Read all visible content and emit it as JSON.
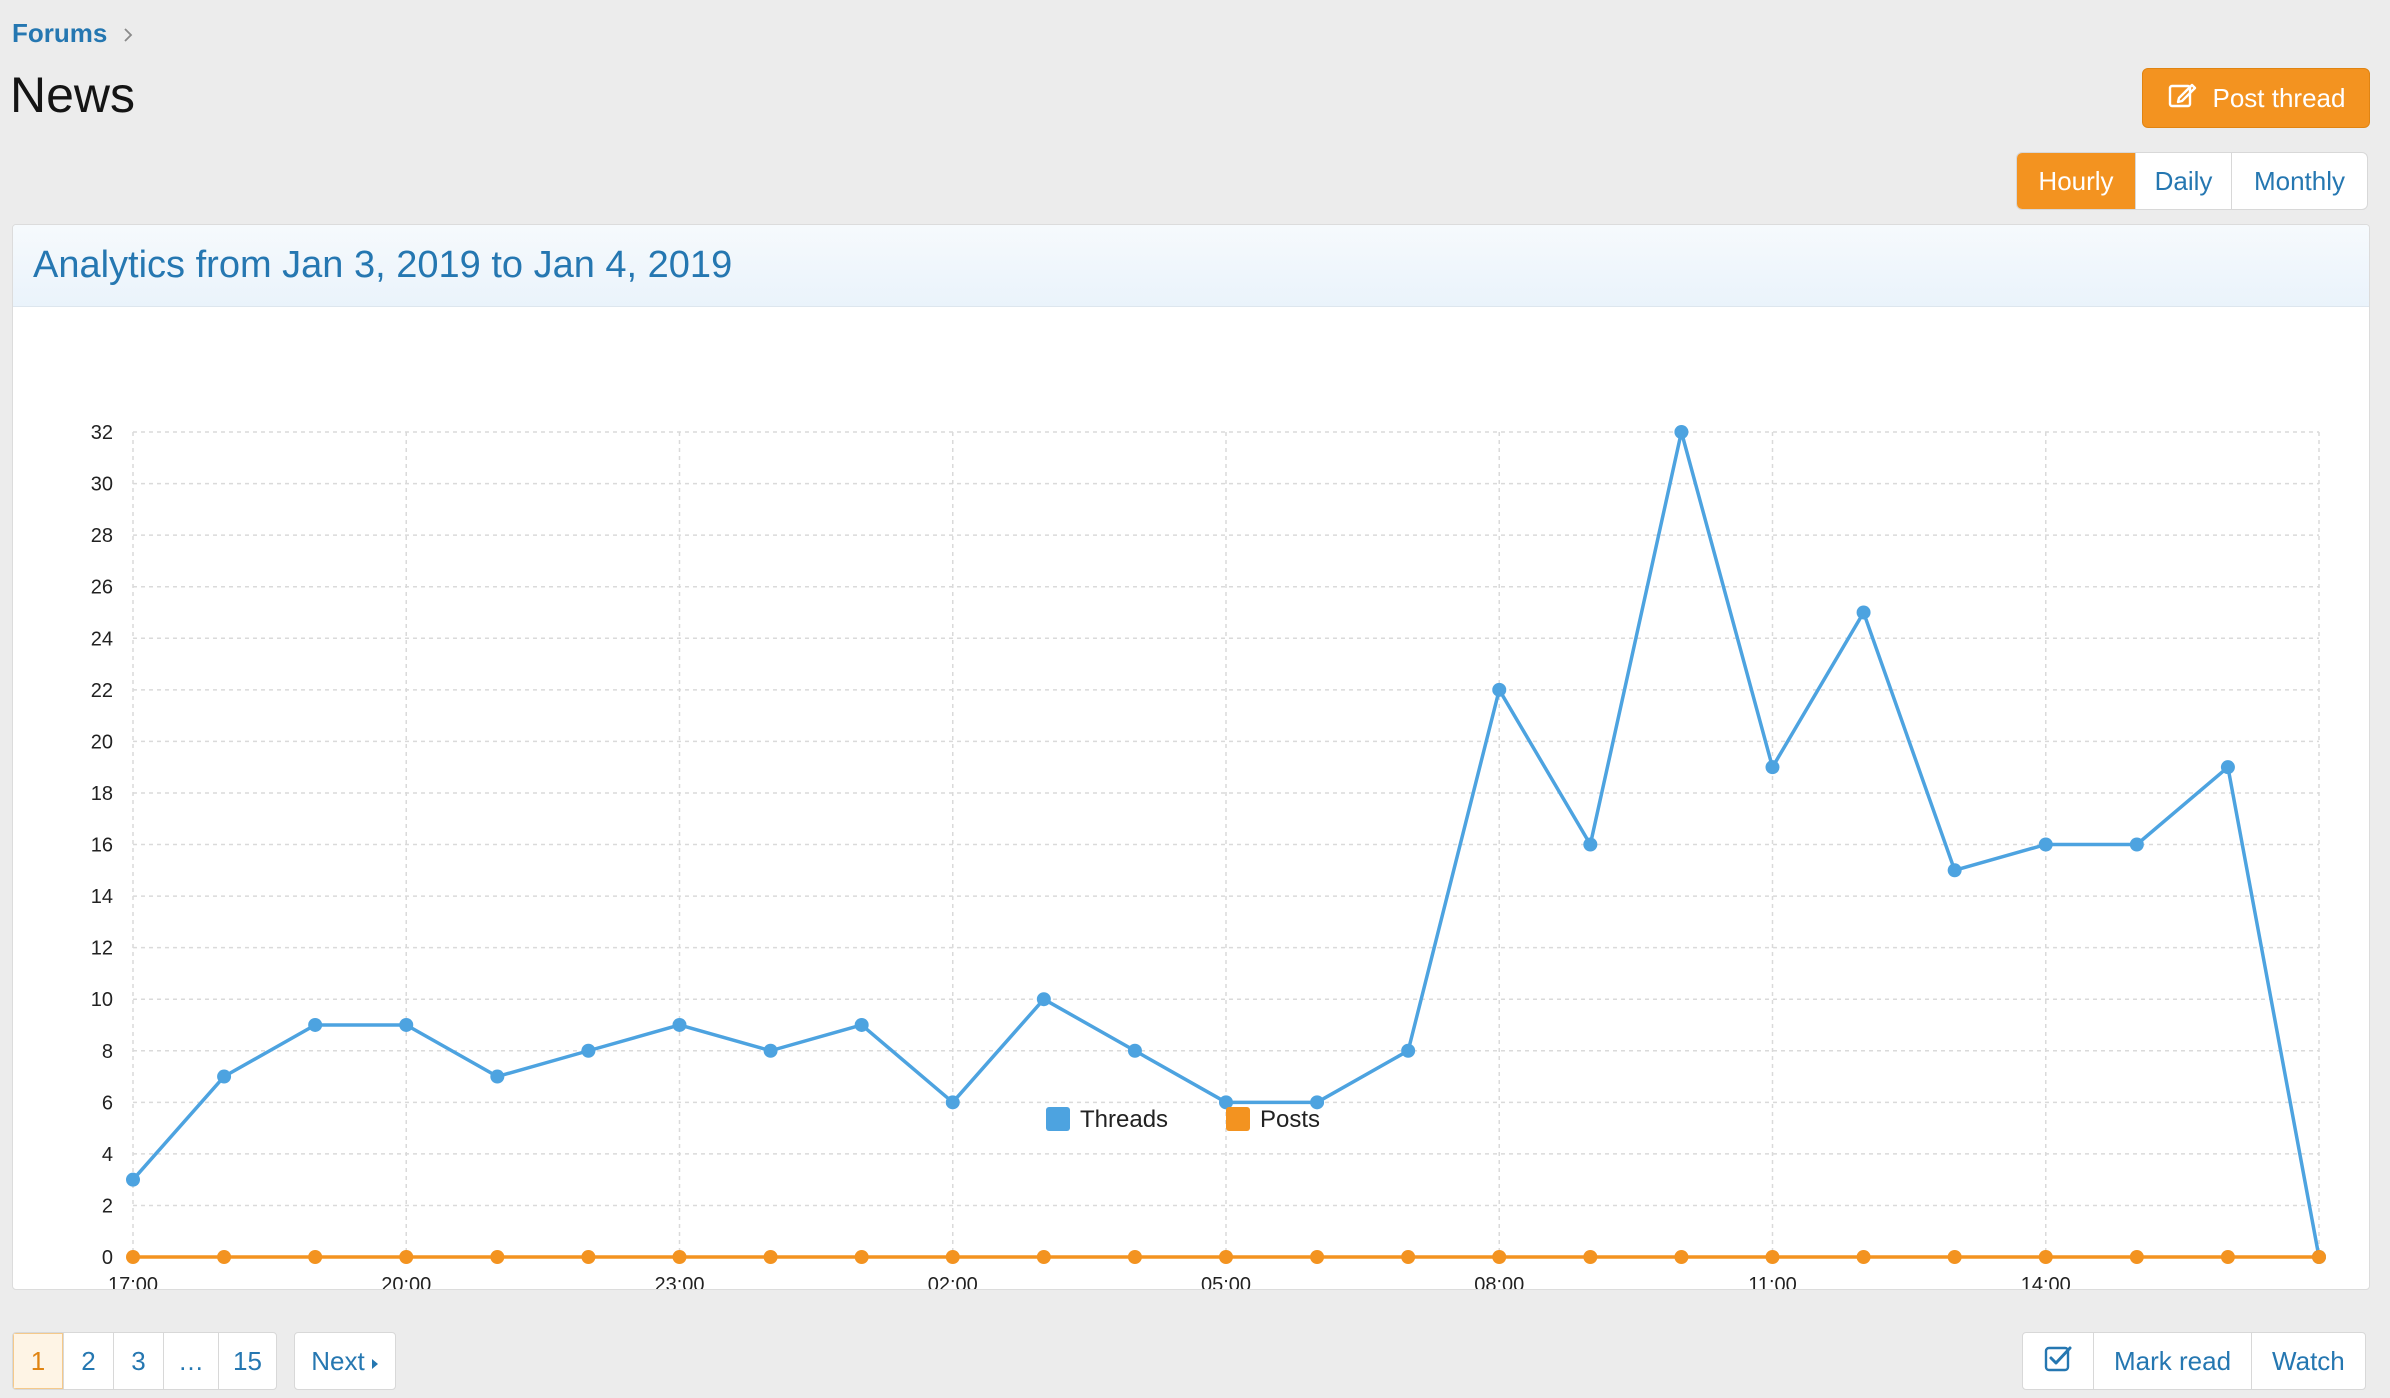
{
  "breadcrumb": {
    "items": [
      {
        "label": "Forums"
      }
    ]
  },
  "page": {
    "title": "News"
  },
  "toolbar": {
    "post_thread_label": "Post thread"
  },
  "period": {
    "options": [
      {
        "label": "Hourly",
        "active": true
      },
      {
        "label": "Daily",
        "active": false
      },
      {
        "label": "Monthly",
        "active": false
      }
    ]
  },
  "panel": {
    "title": "Analytics from Jan 3, 2019 to Jan 4, 2019"
  },
  "chart_data": {
    "type": "line",
    "title": "",
    "xlabel": "",
    "ylabel": "",
    "x": [
      "17:00",
      "18:00",
      "19:00",
      "20:00",
      "21:00",
      "22:00",
      "23:00",
      "00:00",
      "01:00",
      "02:00",
      "03:00",
      "04:00",
      "05:00",
      "06:00",
      "07:00",
      "08:00",
      "09:00",
      "10:00",
      "11:00",
      "12:00",
      "13:00",
      "14:00",
      "15:00",
      "16:00",
      "17:00"
    ],
    "x_tick_labels": [
      "17:00",
      "20:00",
      "23:00",
      "02:00",
      "05:00",
      "08:00",
      "11:00",
      "14:00"
    ],
    "x_tick_indices": [
      0,
      3,
      6,
      9,
      12,
      15,
      18,
      21
    ],
    "ylim": [
      0,
      32
    ],
    "y_ticks": [
      0,
      2,
      4,
      6,
      8,
      10,
      12,
      14,
      16,
      18,
      20,
      22,
      24,
      26,
      28,
      30,
      32
    ],
    "grid": true,
    "legend_position": "bottom",
    "series": [
      {
        "name": "Threads",
        "color": "#4da3e0",
        "values": [
          3,
          7,
          9,
          9,
          7,
          8,
          9,
          8,
          9,
          6,
          10,
          8,
          6,
          6,
          8,
          22,
          16,
          32,
          19,
          25,
          15,
          16,
          16,
          19,
          0
        ]
      },
      {
        "name": "Posts",
        "color": "#f39320",
        "values": [
          0,
          0,
          0,
          0,
          0,
          0,
          0,
          0,
          0,
          0,
          0,
          0,
          0,
          0,
          0,
          0,
          0,
          0,
          0,
          0,
          0,
          0,
          0,
          0,
          0
        ]
      }
    ]
  },
  "pagination": {
    "pages": [
      {
        "label": "1",
        "current": true
      },
      {
        "label": "2",
        "current": false
      },
      {
        "label": "3",
        "current": false
      },
      {
        "label": "…",
        "current": false,
        "gap": true
      },
      {
        "label": "15",
        "current": false
      }
    ],
    "next_label": "Next"
  },
  "actions": {
    "select_icon": "checkbox-icon",
    "mark_read_label": "Mark read",
    "watch_label": "Watch"
  },
  "colors": {
    "accent": "#f39320",
    "link": "#2577b1",
    "threads": "#4da3e0",
    "posts": "#f39320"
  }
}
